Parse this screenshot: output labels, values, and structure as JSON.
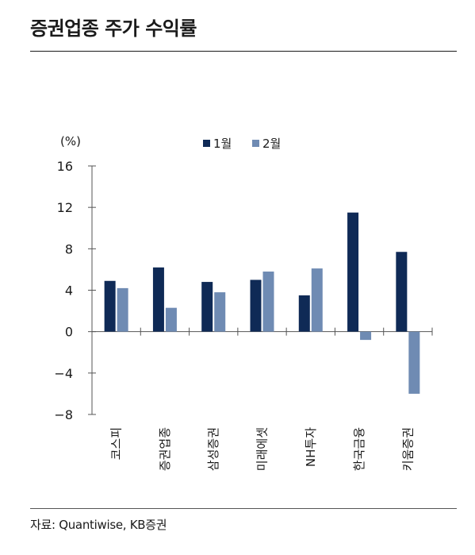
{
  "header": {
    "title": "증권업종 주가 수익률"
  },
  "footer": {
    "source": "자료: Quantiwise, KB증권"
  },
  "chart_data": {
    "type": "bar",
    "title": "증권업종 주가 수익률",
    "unit_label": "(%)",
    "xlabel": "",
    "ylabel": "",
    "ylim": [
      -8,
      16
    ],
    "yticks": [
      16,
      12,
      8,
      4,
      0,
      -4,
      -8
    ],
    "ytick_labels": [
      "16",
      "12",
      "8",
      "4",
      "0",
      "−4",
      "−8"
    ],
    "grid": false,
    "legend_position": "top-center",
    "categories": [
      "코스피",
      "증권업종",
      "삼성증권",
      "미래에셋",
      "NH투자",
      "한국금융",
      "키움증권"
    ],
    "series": [
      {
        "name": "1월",
        "color": "#0f2a56",
        "values": [
          4.9,
          6.2,
          4.8,
          5.0,
          3.5,
          11.5,
          7.7
        ]
      },
      {
        "name": "2월",
        "color": "#6f8bb3",
        "values": [
          4.2,
          2.3,
          3.8,
          5.8,
          6.1,
          -0.8,
          -6.0
        ]
      }
    ]
  }
}
